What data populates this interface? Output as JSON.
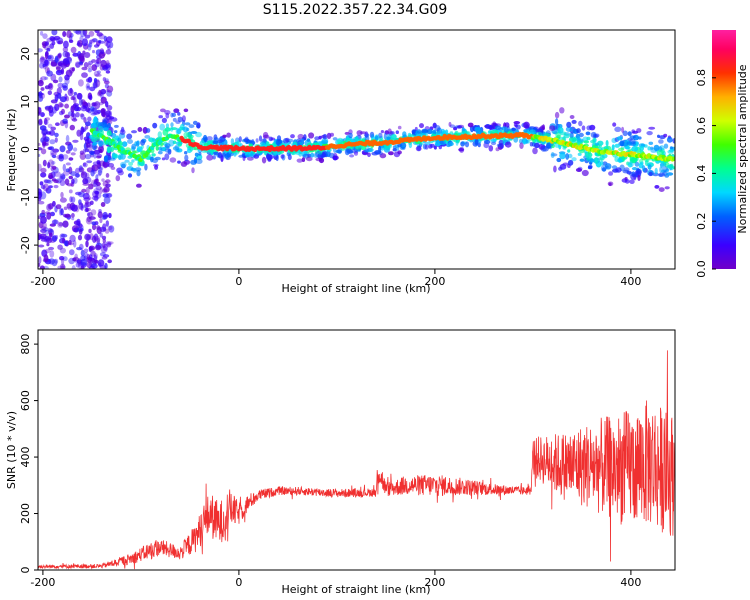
{
  "title": "S115.2022.357.22.34.G09",
  "colors": {
    "snr_series": "#f03030",
    "ridge": "#e03030",
    "axes": "#000000"
  },
  "colorbar": {
    "label": "Normalized spectral amplitude",
    "range": [
      0,
      1
    ],
    "ticks": [
      0.0,
      0.2,
      0.4,
      0.6,
      0.8
    ],
    "tick_labels": [
      "0.0",
      "0.2",
      "0.4",
      "0.6",
      "0.8"
    ],
    "colormap": "hsv-like: violet(0) - blue - cyan - green - yellow - orange - red - magenta(1)"
  },
  "chart_data": [
    {
      "id": "spectrogram",
      "type": "heatmap",
      "xlabel": "Height of straight line (km)",
      "ylabel": "Frequency (Hz)",
      "xlim": [
        -205,
        445
      ],
      "ylim": [
        -25,
        25
      ],
      "xticks": [
        -200,
        0,
        200,
        400
      ],
      "xtick_labels": [
        "-200",
        "0",
        "200",
        "400"
      ],
      "yticks": [
        -20,
        -10,
        0,
        10,
        20
      ],
      "ytick_labels": [
        "-20",
        "-10",
        "0",
        "10",
        "20"
      ],
      "grid": false,
      "ridge": {
        "x": [
          -150,
          -120,
          -100,
          -85,
          -70,
          -55,
          -40,
          0,
          40,
          80,
          110,
          150,
          200,
          250,
          290,
          330,
          370,
          400,
          440
        ],
        "y": [
          4,
          0,
          -2,
          1,
          3,
          2,
          0.5,
          0.2,
          0.2,
          0.3,
          1,
          1.5,
          2.5,
          2.8,
          3,
          1.5,
          -0.5,
          -1,
          -2
        ]
      },
      "noise_region": {
        "x_range": [
          -205,
          -130
        ],
        "description_amplitude": "low (violet)"
      }
    },
    {
      "id": "snr",
      "type": "line",
      "xlabel": "Height of straight line (km)",
      "ylabel": "SNR (10 * v/v)",
      "xlim": [
        -205,
        445
      ],
      "ylim": [
        0,
        850
      ],
      "xticks": [
        -200,
        0,
        200,
        400
      ],
      "xtick_labels": [
        "-200",
        "0",
        "200",
        "400"
      ],
      "yticks": [
        0,
        200,
        400,
        600,
        800
      ],
      "ytick_labels": [
        "0",
        "200",
        "400",
        "600",
        "800"
      ],
      "grid": false,
      "series": [
        {
          "color": "#f03030",
          "envelope": {
            "x": [
              -205,
              -140,
              -110,
              -90,
              -80,
              -60,
              -45,
              -30,
              -20,
              -10,
              0,
              10,
              20,
              40,
              60,
              100,
              140,
              142,
              150,
              170,
              200,
              230,
              260,
              290,
              298,
              300,
              330,
              360,
              390,
              420,
              440
            ],
            "center": [
              12,
              14,
              40,
              70,
              80,
              60,
              110,
              200,
              160,
              220,
              200,
              240,
              265,
              280,
              280,
              272,
              275,
              360,
              285,
              300,
              300,
              295,
              285,
              280,
              285,
              400,
              370,
              370,
              360,
              380,
              340
            ],
            "spread": [
              6,
              8,
              20,
              30,
              30,
              25,
              50,
              80,
              80,
              70,
              40,
              30,
              20,
              15,
              15,
              15,
              15,
              60,
              25,
              35,
              40,
              30,
              20,
              15,
              20,
              70,
              120,
              160,
              200,
              230,
              220
            ]
          }
        }
      ]
    }
  ]
}
